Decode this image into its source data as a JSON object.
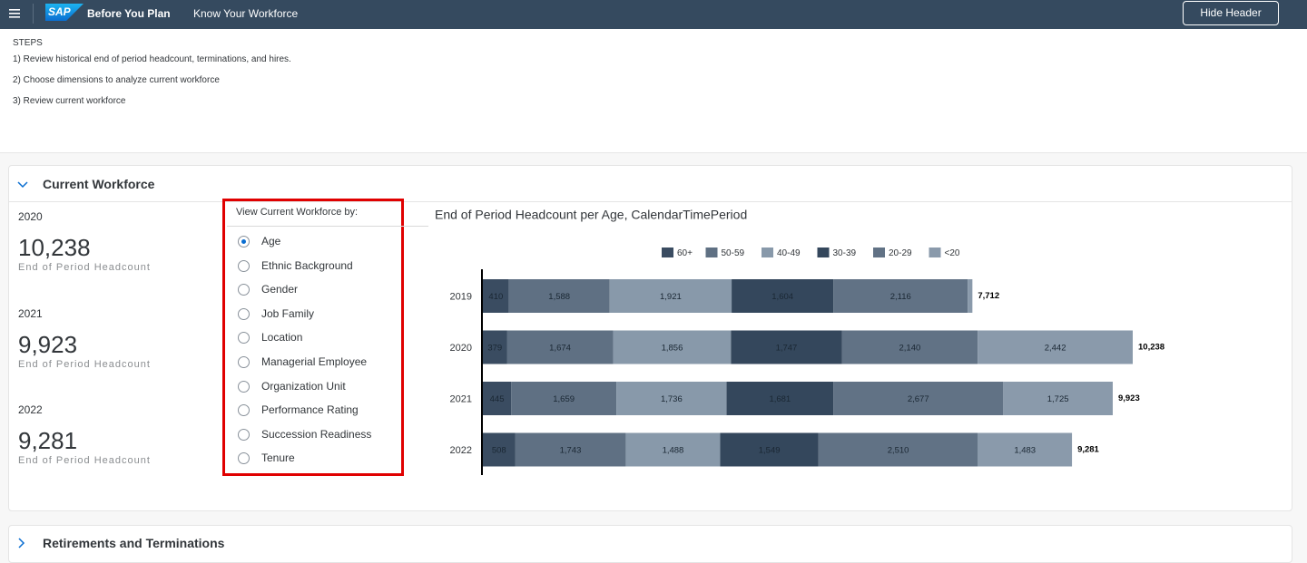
{
  "header": {
    "brand": "SAP",
    "title": "Before You Plan",
    "nav": "Know Your Workforce",
    "button": "Hide Header"
  },
  "steps": {
    "heading": "STEPS",
    "items": [
      "1) Review historical end of period headcount, terminations, and hires.",
      "2) Choose dimensions to analyze current workforce",
      "3) Review current workforce"
    ]
  },
  "current_workforce": {
    "title": "Current Workforce",
    "kpis": [
      {
        "year": "2020",
        "value": "10,238",
        "label": "End of Period Headcount"
      },
      {
        "year": "2021",
        "value": "9,923",
        "label": "End of Period Headcount"
      },
      {
        "year": "2022",
        "value": "9,281",
        "label": "End of Period Headcount"
      }
    ],
    "selector": {
      "label": "View Current Workforce by:",
      "options": [
        "Age",
        "Ethnic Background",
        "Gender",
        "Job Family",
        "Location",
        "Managerial Employee",
        "Organization Unit",
        "Performance Rating",
        "Succession Readiness",
        "Tenure"
      ],
      "selected": 0
    }
  },
  "chart_data": {
    "type": "bar",
    "orientation": "horizontal",
    "stacked": true,
    "title": "End of Period Headcount per Age, CalendarTimePeriod",
    "categories": [
      "2019",
      "2020",
      "2021",
      "2022"
    ],
    "series": [
      {
        "name": "60+",
        "color": "#3a4c61",
        "values": [
          410,
          379,
          445,
          508
        ],
        "value_labels": [
          "410",
          "379",
          "445",
          "508"
        ]
      },
      {
        "name": "50-59",
        "color": "#5f7083",
        "values": [
          1588,
          1674,
          1659,
          1743
        ],
        "value_labels": [
          "1,588",
          "1,674",
          "1,659",
          "1,743"
        ]
      },
      {
        "name": "40-49",
        "color": "#8899aa",
        "values": [
          1921,
          1856,
          1736,
          1488
        ],
        "value_labels": [
          "1,921",
          "1,856",
          "1,736",
          "1,488"
        ]
      },
      {
        "name": "30-39",
        "color": "#34475c",
        "values": [
          1604,
          1747,
          1681,
          1549
        ],
        "value_labels": [
          "1,604",
          "1,747",
          "1,681",
          "1,549"
        ]
      },
      {
        "name": "20-29",
        "color": "#617285",
        "values": [
          2116,
          2140,
          2677,
          2510
        ],
        "value_labels": [
          "2,116",
          "2,140",
          "2,677",
          "2,510"
        ]
      },
      {
        "name": "<20",
        "color": "#8a9aab",
        "values": [
          73,
          2442,
          1725,
          1483
        ],
        "value_labels": [
          null,
          "2,442",
          "1,725",
          "1,483"
        ]
      }
    ],
    "total_labels": [
      "7,712",
      "10,238",
      "9,923",
      "9,281"
    ]
  },
  "sections": [
    "Retirements and Terminations"
  ]
}
